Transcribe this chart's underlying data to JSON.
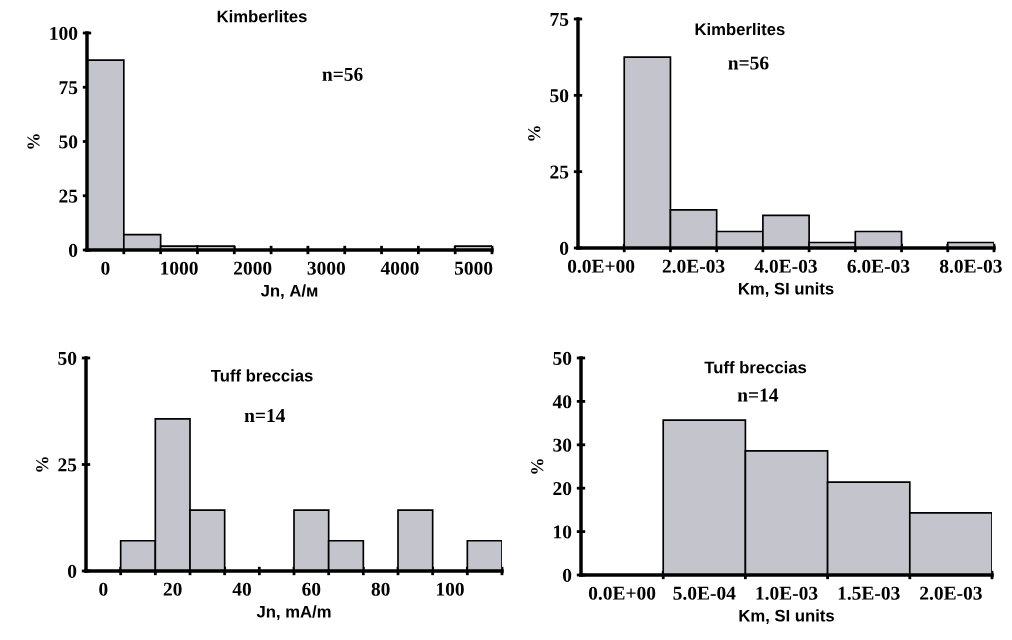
{
  "chart_data": [
    {
      "type": "histogram",
      "title": "Kimberlites",
      "annotations": [
        "n=56"
      ],
      "xlabel": "Jn, А/м",
      "ylabel": "%",
      "color": "#c4c4cc",
      "bins": [
        -250,
        250,
        750,
        1250,
        1750,
        2250,
        2750,
        3250,
        3750,
        4250,
        4750,
        5250
      ],
      "values": [
        87.5,
        7.1,
        1.8,
        1.8,
        0,
        0,
        0,
        0,
        0,
        0,
        1.8
      ],
      "xlim": [
        -250,
        5250
      ],
      "ylim": [
        0,
        100
      ],
      "yticks": [
        0,
        25,
        50,
        75,
        100
      ],
      "xticks": [
        0,
        1000,
        2000,
        3000,
        4000,
        5000,
        {
          "value": 250,
          "label": null
        },
        {
          "value": 750,
          "label": null
        },
        {
          "value": 1250,
          "label": null
        },
        {
          "value": 1750,
          "label": null
        },
        {
          "value": 2250,
          "label": null
        },
        {
          "value": 2750,
          "label": null
        },
        {
          "value": 3250,
          "label": null
        },
        {
          "value": 3750,
          "label": null
        },
        {
          "value": 4250,
          "label": null
        },
        {
          "value": 4750,
          "label": null
        },
        {
          "value": 5250,
          "label": null
        }
      ]
    },
    {
      "type": "histogram",
      "title": "Kimberlites",
      "annotations": [
        "n=56"
      ],
      "xlabel": "Km, SI units",
      "ylabel": "%",
      "color": "#c4c4cc",
      "bins": [
        -0.0005,
        0.0005,
        0.0015,
        0.0025,
        0.0035,
        0.0045,
        0.0055,
        0.0065,
        0.0075,
        0.0085
      ],
      "values": [
        0,
        62.5,
        12.5,
        5.4,
        10.7,
        1.8,
        5.4,
        0,
        1.8
      ],
      "xlim": [
        -0.0005,
        0.0085
      ],
      "ylim": [
        0,
        75
      ],
      "yticks": [
        0,
        25,
        50,
        75
      ],
      "xticks": [
        {
          "value": 0,
          "label": "0.0E+00"
        },
        {
          "value": 0.002,
          "label": "2.0E-03"
        },
        {
          "value": 0.004,
          "label": "4.0E-03"
        },
        {
          "value": 0.006,
          "label": "6.0E-03"
        },
        {
          "value": 0.008,
          "label": "8.0E-03"
        },
        {
          "value": 0.0005,
          "label": null
        },
        {
          "value": 0.0015,
          "label": null
        },
        {
          "value": 0.0025,
          "label": null
        },
        {
          "value": 0.0035,
          "label": null
        },
        {
          "value": 0.0045,
          "label": null
        },
        {
          "value": 0.0055,
          "label": null
        },
        {
          "value": 0.0065,
          "label": null
        },
        {
          "value": 0.0075,
          "label": null
        },
        {
          "value": 0.0085,
          "label": null
        }
      ]
    },
    {
      "type": "histogram",
      "title": "Tuff breccias",
      "annotations": [
        "n=14"
      ],
      "xlabel": "Jn, mA/m",
      "ylabel": "%",
      "color": "#c4c4cc",
      "bins": [
        -5,
        5,
        15,
        25,
        35,
        45,
        55,
        65,
        75,
        85,
        95,
        105,
        115
      ],
      "values": [
        0,
        7.1,
        35.7,
        14.3,
        0,
        0,
        14.3,
        7.1,
        0,
        14.3,
        0,
        7.1
      ],
      "xlim": [
        -5,
        115
      ],
      "ylim": [
        0,
        50
      ],
      "yticks": [
        0,
        25,
        50
      ],
      "xticks": [
        0,
        20,
        40,
        60,
        80,
        100,
        {
          "value": 5,
          "label": null
        },
        {
          "value": 15,
          "label": null
        },
        {
          "value": 25,
          "label": null
        },
        {
          "value": 35,
          "label": null
        },
        {
          "value": 45,
          "label": null
        },
        {
          "value": 55,
          "label": null
        },
        {
          "value": 65,
          "label": null
        },
        {
          "value": 75,
          "label": null
        },
        {
          "value": 85,
          "label": null
        },
        {
          "value": 95,
          "label": null
        },
        {
          "value": 105,
          "label": null
        },
        {
          "value": 115,
          "label": null
        }
      ]
    },
    {
      "type": "histogram",
      "title": "Tuff breccias",
      "annotations": [
        "n=14"
      ],
      "xlabel": "Km, SI units",
      "ylabel": "%",
      "color": "#c4c4cc",
      "bins": [
        -0.00025,
        0.00025,
        0.00075,
        0.00125,
        0.00175,
        0.00225
      ],
      "values": [
        0,
        35.7,
        28.6,
        21.4,
        14.3
      ],
      "xlim": [
        -0.00025,
        0.00225
      ],
      "ylim": [
        0,
        50
      ],
      "yticks": [
        0,
        10,
        20,
        30,
        40,
        50
      ],
      "xticks": [
        {
          "value": 0,
          "label": "0.0E+00"
        },
        {
          "value": 0.0005,
          "label": "5.0E-04"
        },
        {
          "value": 0.001,
          "label": "1.0E-03"
        },
        {
          "value": 0.0015,
          "label": "1.5E-03"
        },
        {
          "value": 0.002,
          "label": "2.0E-03"
        },
        {
          "value": 0.00025,
          "label": null
        },
        {
          "value": 0.00075,
          "label": null
        },
        {
          "value": 0.00125,
          "label": null
        },
        {
          "value": 0.00175,
          "label": null
        },
        {
          "value": 0.00225,
          "label": null
        }
      ]
    }
  ]
}
